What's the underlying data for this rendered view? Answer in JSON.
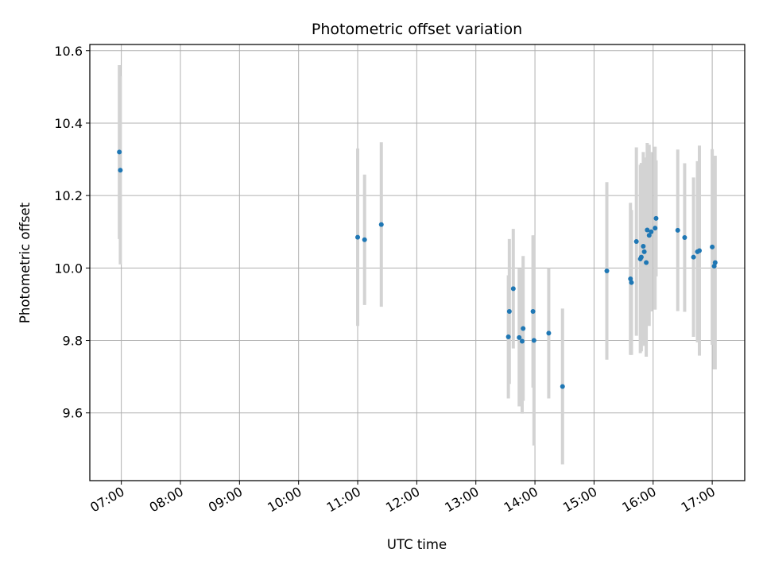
{
  "chart_data": {
    "type": "scatter",
    "title": "Photometric offset variation",
    "xlabel": "UTC time",
    "ylabel": "Photometric offset",
    "x_ticks": [
      "07:00",
      "08:00",
      "09:00",
      "10:00",
      "11:00",
      "12:00",
      "13:00",
      "14:00",
      "15:00",
      "16:00",
      "17:00"
    ],
    "xlim": [
      "06:28",
      "17:33"
    ],
    "y_ticks": [
      9.6,
      9.8,
      10.0,
      10.2,
      10.4,
      10.6
    ],
    "ylim": [
      9.413,
      10.617
    ],
    "grid": true,
    "colors": {
      "point": "#1f77b4",
      "errorbar": "#d3d3d3",
      "grid": "#b0b0b0"
    },
    "points": [
      {
        "x": "06:58",
        "y": 10.32,
        "err": 0.24
      },
      {
        "x": "06:59",
        "y": 10.27,
        "err": 0.26
      },
      {
        "x": "11:00",
        "y": 10.085,
        "err": 0.245
      },
      {
        "x": "11:07",
        "y": 10.078,
        "err": 0.18
      },
      {
        "x": "11:24",
        "y": 10.12,
        "err": 0.227
      },
      {
        "x": "13:33",
        "y": 9.81,
        "err": 0.17
      },
      {
        "x": "13:34",
        "y": 9.88,
        "err": 0.2
      },
      {
        "x": "13:38",
        "y": 9.943,
        "err": 0.165
      },
      {
        "x": "13:44",
        "y": 9.808,
        "err": 0.19
      },
      {
        "x": "13:47",
        "y": 9.798,
        "err": 0.2
      },
      {
        "x": "13:48",
        "y": 9.833,
        "err": 0.2
      },
      {
        "x": "13:58",
        "y": 9.88,
        "err": 0.21
      },
      {
        "x": "13:59",
        "y": 9.8,
        "err": 0.29
      },
      {
        "x": "14:14",
        "y": 9.82,
        "err": 0.18
      },
      {
        "x": "14:28",
        "y": 9.673,
        "err": 0.215
      },
      {
        "x": "15:13",
        "y": 9.992,
        "err": 0.245
      },
      {
        "x": "15:37",
        "y": 9.97,
        "err": 0.21
      },
      {
        "x": "15:38",
        "y": 9.96,
        "err": 0.2
      },
      {
        "x": "15:43",
        "y": 10.073,
        "err": 0.26
      },
      {
        "x": "15:47",
        "y": 10.025,
        "err": 0.26
      },
      {
        "x": "15:48",
        "y": 10.03,
        "err": 0.26
      },
      {
        "x": "15:50",
        "y": 10.06,
        "err": 0.26
      },
      {
        "x": "15:51",
        "y": 10.045,
        "err": 0.26
      },
      {
        "x": "15:53",
        "y": 10.015,
        "err": 0.26
      },
      {
        "x": "15:54",
        "y": 10.105,
        "err": 0.24
      },
      {
        "x": "15:56",
        "y": 10.09,
        "err": 0.25
      },
      {
        "x": "15:58",
        "y": 10.1,
        "err": 0.22
      },
      {
        "x": "16:02",
        "y": 10.11,
        "err": 0.225
      },
      {
        "x": "16:03",
        "y": 10.137,
        "err": 0.16
      },
      {
        "x": "16:25",
        "y": 10.104,
        "err": 0.223
      },
      {
        "x": "16:32",
        "y": 10.084,
        "err": 0.205
      },
      {
        "x": "16:41",
        "y": 10.03,
        "err": 0.22
      },
      {
        "x": "16:45",
        "y": 10.045,
        "err": 0.25
      },
      {
        "x": "16:47",
        "y": 10.048,
        "err": 0.29
      },
      {
        "x": "17:00",
        "y": 10.058,
        "err": 0.27
      },
      {
        "x": "17:02",
        "y": 10.005,
        "err": 0.285
      },
      {
        "x": "17:03",
        "y": 10.015,
        "err": 0.295
      }
    ]
  }
}
